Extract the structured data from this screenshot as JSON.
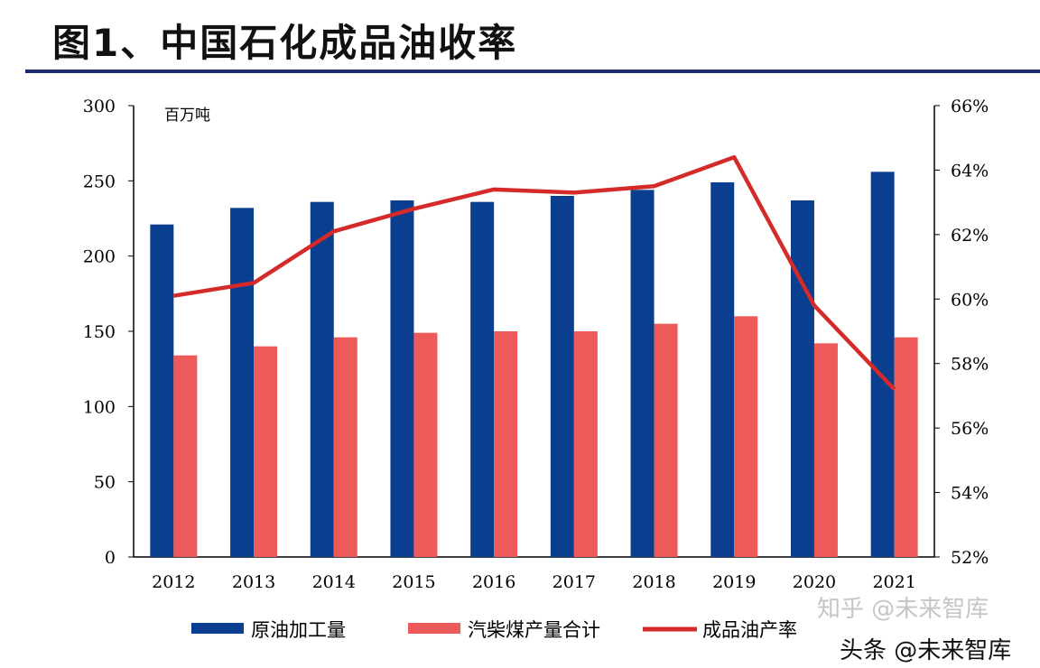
{
  "title": "图1、中国石化成品油收率",
  "watermarks": [
    "知乎 @未来智库",
    "头条 @未来智库"
  ],
  "chart_data": {
    "type": "bar",
    "title": "图1、中国石化成品油收率",
    "unit_label": "百万吨",
    "categories": [
      "2012",
      "2013",
      "2014",
      "2015",
      "2016",
      "2017",
      "2018",
      "2019",
      "2020",
      "2021"
    ],
    "y_left": {
      "range": [
        0,
        300
      ],
      "ticks": [
        0,
        50,
        100,
        150,
        200,
        250,
        300
      ]
    },
    "y_right": {
      "range": [
        52,
        66
      ],
      "ticks": [
        52,
        54,
        56,
        58,
        60,
        62,
        64,
        66
      ],
      "format": "percent"
    },
    "series": [
      {
        "name": "原油加工量",
        "type": "bar",
        "axis": "left",
        "color": "#0a3f8f",
        "values": [
          221,
          232,
          236,
          237,
          236,
          240,
          244,
          249,
          237,
          256
        ]
      },
      {
        "name": "汽柴煤产量合计",
        "type": "bar",
        "axis": "left",
        "color": "#ee5a5a",
        "values": [
          134,
          140,
          146,
          149,
          150,
          150,
          155,
          160,
          142,
          146
        ]
      },
      {
        "name": "成品油产率",
        "type": "line",
        "axis": "right",
        "color": "#d42a2a",
        "values": [
          60.1,
          60.5,
          62.1,
          62.8,
          63.4,
          63.3,
          63.5,
          64.4,
          59.8,
          57.2
        ]
      }
    ],
    "grid": false,
    "legend": "bottom"
  }
}
